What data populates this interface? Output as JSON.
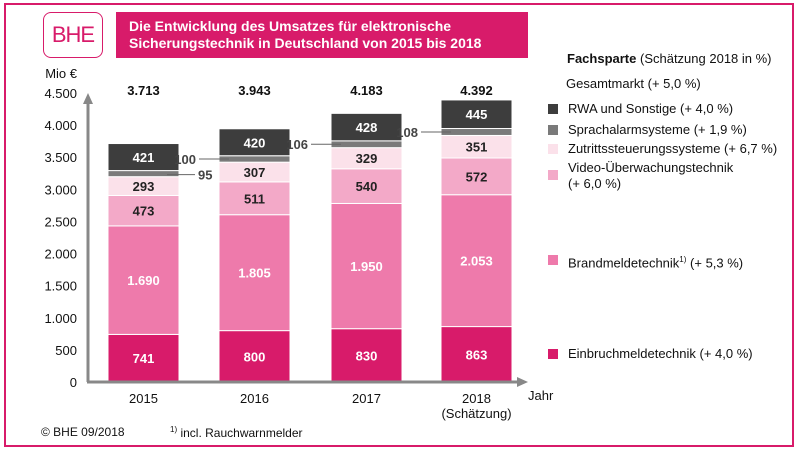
{
  "header": {
    "logo_text": "BHE",
    "title_line1": "Die Entwicklung des Umsatzes für elektronische",
    "title_line2": "Sicherungstechnik in Deutschland von 2015 bis 2018"
  },
  "colors": {
    "brand": "#d81b6a",
    "RWA": "#3d3d3d",
    "Sprachalarm": "#7a7a7a",
    "Zutritt": "#fbe1ea",
    "Video": "#f3a9c8",
    "Brand": "#ee7aab",
    "Einbruch": "#d81b6a"
  },
  "legend": {
    "heading_bold": "Fachsparte",
    "heading_rest": " (Schätzung 2018 in %)",
    "total": "Gesamtmarkt (+ 5,0 %)",
    "items": [
      {
        "key": "RWA",
        "label": "RWA und Sonstige (+ 4,0 %)"
      },
      {
        "key": "Sprachalarm",
        "label": "Sprachalarmsysteme (+ 1,9 %)"
      },
      {
        "key": "Zutritt",
        "label": "Zutrittssteuerungssysteme (+ 6,7 %)"
      },
      {
        "key": "Video",
        "label": "Video-Überwachungstechnik",
        "label2": "(+ 6,0 %)"
      },
      {
        "key": "Brand",
        "label": "Brandmeldetechnik",
        "sup": "1)",
        "label_suffix": " (+ 5,3 %)"
      },
      {
        "key": "Einbruch",
        "label": "Einbruchmeldetechnik (+ 4,0 %)"
      }
    ]
  },
  "footer": {
    "copyright": "© BHE 09/2018",
    "note_sup": "1)",
    "note_text": " incl. Rauchwarnmelder"
  },
  "chart_data": {
    "type": "bar",
    "stacked": true,
    "title": "Die Entwicklung des Umsatzes für elektronische Sicherungstechnik in Deutschland von 2015 bis 2018",
    "ylabel": "Mio €",
    "xlabel": "Jahr",
    "ylim": [
      0,
      4500
    ],
    "yticks": [
      0,
      500,
      1000,
      1500,
      2000,
      2500,
      3000,
      3500,
      4000,
      4500
    ],
    "ytick_labels": [
      "0",
      "500",
      "1.000",
      "1.500",
      "2.000",
      "2.500",
      "3.000",
      "3.500",
      "4.000",
      "4.500"
    ],
    "grid": false,
    "legend_position": "right",
    "categories": [
      "2015",
      "2016",
      "2017",
      "2018"
    ],
    "category_sublabels": [
      "",
      "",
      "",
      "(Schätzung)"
    ],
    "totals": [
      3713,
      3943,
      4183,
      4392
    ],
    "total_labels": [
      "3.713",
      "3.943",
      "4.183",
      "4.392"
    ],
    "series": [
      {
        "name": "Einbruchmeldetechnik",
        "key": "Einbruch",
        "values": [
          741,
          800,
          830,
          863
        ],
        "labels": [
          "741",
          "800",
          "830",
          "863"
        ],
        "label_color": "#ffffff"
      },
      {
        "name": "Brandmeldetechnik",
        "key": "Brand",
        "values": [
          1690,
          1805,
          1950,
          2053
        ],
        "labels": [
          "1.690",
          "1.805",
          "1.950",
          "2.053"
        ],
        "label_color": "#ffffff"
      },
      {
        "name": "Video-Überwachungstechnik",
        "key": "Video",
        "values": [
          473,
          511,
          540,
          572
        ],
        "labels": [
          "473",
          "511",
          "540",
          "572"
        ],
        "label_color": "#222222"
      },
      {
        "name": "Zutrittssteuerungssysteme",
        "key": "Zutritt",
        "values": [
          293,
          307,
          329,
          351
        ],
        "labels": [
          "293",
          "307",
          "329",
          "351"
        ],
        "label_color": "#222222"
      },
      {
        "name": "Sprachalarmsysteme",
        "key": "Sprachalarm",
        "values": [
          95,
          100,
          106,
          108
        ],
        "labels": [
          "95",
          "100",
          "106",
          "108"
        ],
        "label_color": "#333333",
        "callout": true
      },
      {
        "name": "RWA und Sonstige",
        "key": "RWA",
        "values": [
          421,
          420,
          428,
          445
        ],
        "labels": [
          "421",
          "420",
          "428",
          "445"
        ],
        "label_color": "#ffffff"
      }
    ]
  }
}
